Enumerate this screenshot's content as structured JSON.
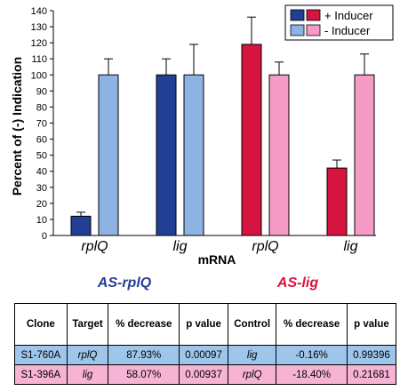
{
  "chart_data": {
    "type": "bar",
    "ylabel": "Percent of (-) Indication",
    "xlabel": "mRNA",
    "ylim": [
      0,
      140
    ],
    "yticks": [
      0,
      10,
      20,
      30,
      40,
      50,
      60,
      70,
      80,
      90,
      100,
      110,
      120,
      130,
      140
    ],
    "grid": false,
    "legend_position": "top-right",
    "legend": {
      "plus_label": "+ Inducer",
      "minus_label": "- Inducer"
    },
    "groups": [
      {
        "name": "AS-rplQ",
        "color": "#233f95",
        "categories": [
          {
            "label": "rplQ",
            "plus": 12,
            "plus_err": 2.5,
            "minus": 100,
            "minus_err": 10
          },
          {
            "label": "lig",
            "plus": 100,
            "plus_err": 10,
            "minus": 100,
            "minus_err": 19
          }
        ]
      },
      {
        "name": "AS-lig",
        "color": "#d5143f",
        "categories": [
          {
            "label": "rplQ",
            "plus": 119,
            "plus_err": 17,
            "minus": 100,
            "minus_err": 8
          },
          {
            "label": "lig",
            "plus": 42,
            "plus_err": 5,
            "minus": 100,
            "minus_err": 13
          }
        ]
      }
    ],
    "colors": {
      "plus_blue": "#233f95",
      "minus_blue": "#8cb3e2",
      "plus_red": "#d5143f",
      "minus_pink": "#f59bc6",
      "group_label_blue": "#233f95",
      "group_label_red": "#d5143f"
    }
  },
  "table": {
    "headers": [
      "Clone",
      "Target",
      "% decrease",
      "p value",
      "Control",
      "% decrease",
      "p value"
    ],
    "rows": [
      [
        "S1-760A",
        "rplQ",
        "87.93%",
        "0.00097",
        "lig",
        "-0.16%",
        "0.99396"
      ],
      [
        "S1-396A",
        "lig",
        "58.07%",
        "0.00937",
        "rplQ",
        "-18.40%",
        "0.21681"
      ]
    ],
    "row_colors": [
      "#9ec6ea",
      "#f6b3d3"
    ]
  }
}
